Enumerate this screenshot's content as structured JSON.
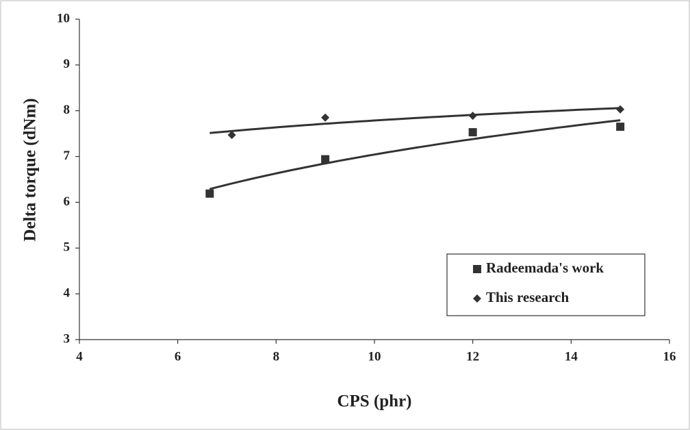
{
  "chart_data": {
    "type": "scatter",
    "x_label": "CPS (phr)",
    "y_label": "Delta torque (dNm)",
    "xlim": [
      4,
      16
    ],
    "xticks": [
      4,
      6,
      8,
      10,
      12,
      14,
      16
    ],
    "ylim": [
      3,
      10
    ],
    "yticks": [
      3,
      4,
      5,
      6,
      7,
      8,
      9,
      10
    ],
    "trendline": "logarithmic",
    "series": [
      {
        "name": "Radeemada's work",
        "color": "#333333",
        "marker": "square",
        "x": [
          6.65,
          9,
          12,
          15
        ],
        "values": [
          6.19,
          6.94,
          7.53,
          7.65
        ]
      },
      {
        "name": "This research",
        "color": "#333333",
        "marker": "diamond",
        "x": [
          7.1,
          9,
          12,
          15
        ],
        "values": [
          7.47,
          7.85,
          7.89,
          8.03
        ]
      }
    ]
  }
}
